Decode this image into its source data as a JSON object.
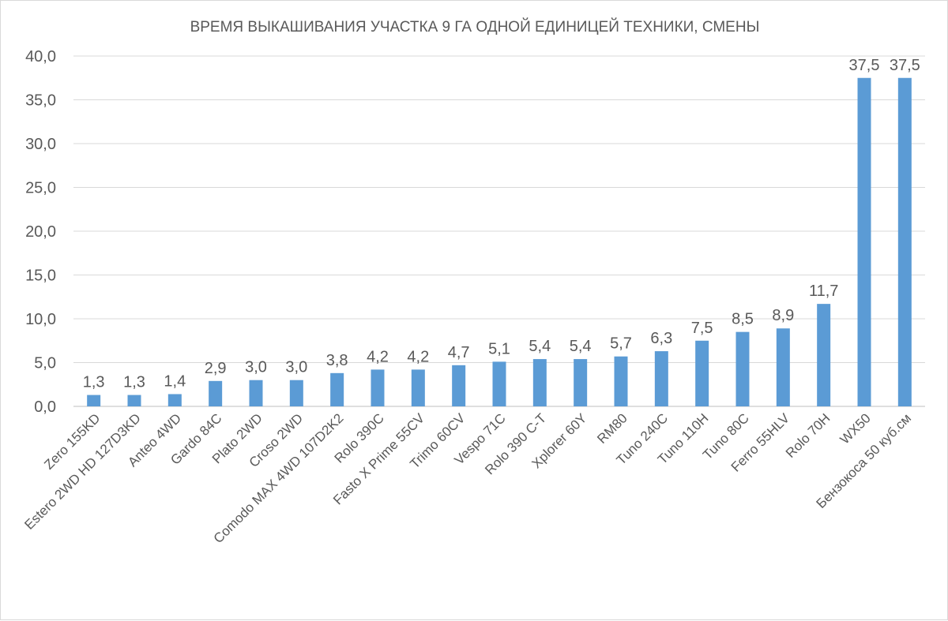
{
  "chart_data": {
    "type": "bar",
    "title": "ВРЕМЯ ВЫКАШИВАНИЯ УЧАСТКА 9 ГА ОДНОЙ ЕДИНИЦЕЙ ТЕХНИКИ, СМЕНЫ",
    "xlabel": "",
    "ylabel": "",
    "ylim": [
      0,
      40
    ],
    "yticks": [
      "0,0",
      "5,0",
      "10,0",
      "15,0",
      "20,0",
      "25,0",
      "30,0",
      "35,0",
      "40,0"
    ],
    "grid": true,
    "categories": [
      "Zero 155KD",
      "Estero 2WD HD 127D3KD",
      "Anteo 4WD",
      "Gardo 84C",
      "Plato 2WD",
      "Croso 2WD",
      "Comodo MAX 4WD 107D2K2",
      "Rolo 390C",
      "Fasto X Prime 55CV",
      "Trimo 60CV",
      "Vespo 71C",
      "Rolo 390 C-T",
      "Xplorer 60Y",
      "RM80",
      "Tuno 240C",
      "Tuno 110H",
      "Tuno 80C",
      "Ferro 55HLV",
      "Rolo 70H",
      "WX50",
      "Бензокоса 50 куб.см"
    ],
    "values": [
      1.3,
      1.3,
      1.4,
      2.9,
      3.0,
      3.0,
      3.8,
      4.2,
      4.2,
      4.7,
      5.1,
      5.4,
      5.4,
      5.7,
      6.3,
      7.5,
      8.5,
      8.9,
      11.7,
      37.5,
      37.5
    ],
    "data_labels": [
      "1,3",
      "1,3",
      "1,4",
      "2,9",
      "3,0",
      "3,0",
      "3,8",
      "4,2",
      "4,2",
      "4,7",
      "5,1",
      "5,4",
      "5,4",
      "5,7",
      "6,3",
      "7,5",
      "8,5",
      "8,9",
      "11,7",
      "37,5",
      "37,5"
    ],
    "bar_color": "#5b9bd5",
    "grid_color": "#d9d9d9",
    "text_color": "#595959"
  }
}
